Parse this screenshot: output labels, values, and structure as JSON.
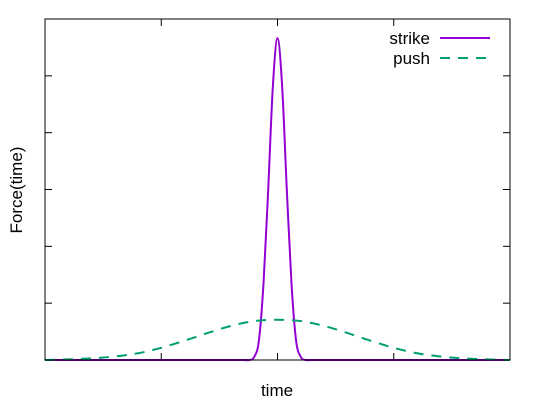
{
  "chart_data": {
    "type": "line",
    "title": "",
    "xlabel": "time",
    "ylabel": "Force(time)",
    "xlim": [
      -1,
      1
    ],
    "ylim": [
      0,
      1.06
    ],
    "grid": false,
    "legend_position": "top-right",
    "series": [
      {
        "name": "strike",
        "style": "solid",
        "color": "#9400d3",
        "x": [
          -1.0,
          -0.2,
          -0.15,
          -0.12,
          -0.1,
          -0.08,
          -0.06,
          -0.04,
          -0.02,
          0.0,
          0.02,
          0.04,
          0.06,
          0.08,
          0.1,
          0.12,
          0.15,
          0.2,
          1.0
        ],
        "y": [
          0.0,
          0.0,
          0.0,
          0.0,
          0.01,
          0.06,
          0.24,
          0.53,
          0.85,
          1.0,
          0.85,
          0.53,
          0.24,
          0.06,
          0.01,
          0.0,
          0.0,
          0.0,
          0.0
        ]
      },
      {
        "name": "push",
        "style": "dashed",
        "color": "#009e73",
        "x": [
          -1.0,
          -0.9,
          -0.8,
          -0.7,
          -0.6,
          -0.5,
          -0.4,
          -0.3,
          -0.2,
          -0.1,
          0.0,
          0.1,
          0.2,
          0.3,
          0.4,
          0.5,
          0.6,
          0.7,
          0.8,
          0.9,
          1.0
        ],
        "y": [
          0.0,
          0.002,
          0.005,
          0.011,
          0.021,
          0.038,
          0.06,
          0.084,
          0.106,
          0.121,
          0.125,
          0.121,
          0.106,
          0.084,
          0.06,
          0.038,
          0.021,
          0.011,
          0.005,
          0.002,
          0.0
        ]
      }
    ]
  }
}
